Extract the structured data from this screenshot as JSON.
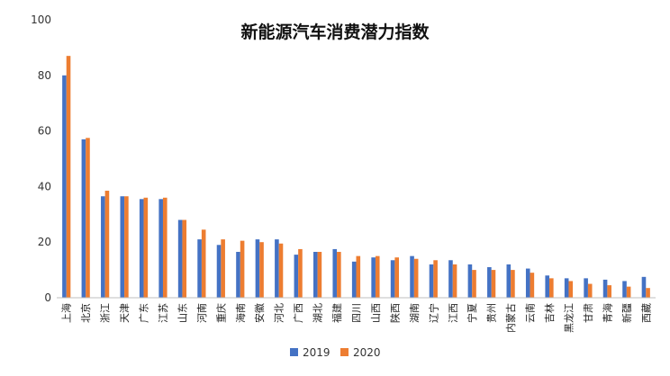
{
  "chart_data": {
    "type": "bar",
    "title": "新能源汽车消费潜力指数",
    "xlabel": "",
    "ylabel": "",
    "ylim": [
      0,
      100
    ],
    "yticks": [
      0,
      20,
      40,
      60,
      80,
      100
    ],
    "grid": false,
    "legend_position": "bottom",
    "categories": [
      "上海",
      "北京",
      "浙江",
      "天津",
      "广东",
      "江苏",
      "山东",
      "河南",
      "重庆",
      "海南",
      "安徽",
      "河北",
      "广西",
      "湖北",
      "福建",
      "四川",
      "山西",
      "陕西",
      "湖南",
      "辽宁",
      "江西",
      "宁夏",
      "贵州",
      "内蒙古",
      "云南",
      "吉林",
      "黑龙江",
      "甘肃",
      "青海",
      "新疆",
      "西藏"
    ],
    "series": [
      {
        "name": "2019",
        "color": "#4472C4",
        "values": [
          80,
          57,
          36.5,
          36.5,
          35.5,
          35.5,
          28,
          21,
          19,
          16.5,
          21,
          21,
          15.5,
          16.5,
          17.5,
          13,
          14.5,
          13.5,
          15,
          12,
          13.5,
          12,
          11,
          12,
          10.5,
          8,
          7,
          7,
          6.5,
          6,
          7.5
        ]
      },
      {
        "name": "2020",
        "color": "#ED7D31",
        "values": [
          87,
          57.5,
          38.5,
          36.5,
          36,
          36,
          28,
          24.5,
          21,
          20.5,
          20,
          19.5,
          17.5,
          16.5,
          16.5,
          15,
          15,
          14.5,
          14,
          13.5,
          12,
          10,
          10,
          10,
          9,
          7,
          6,
          5,
          4.5,
          4,
          3.5
        ]
      }
    ]
  }
}
